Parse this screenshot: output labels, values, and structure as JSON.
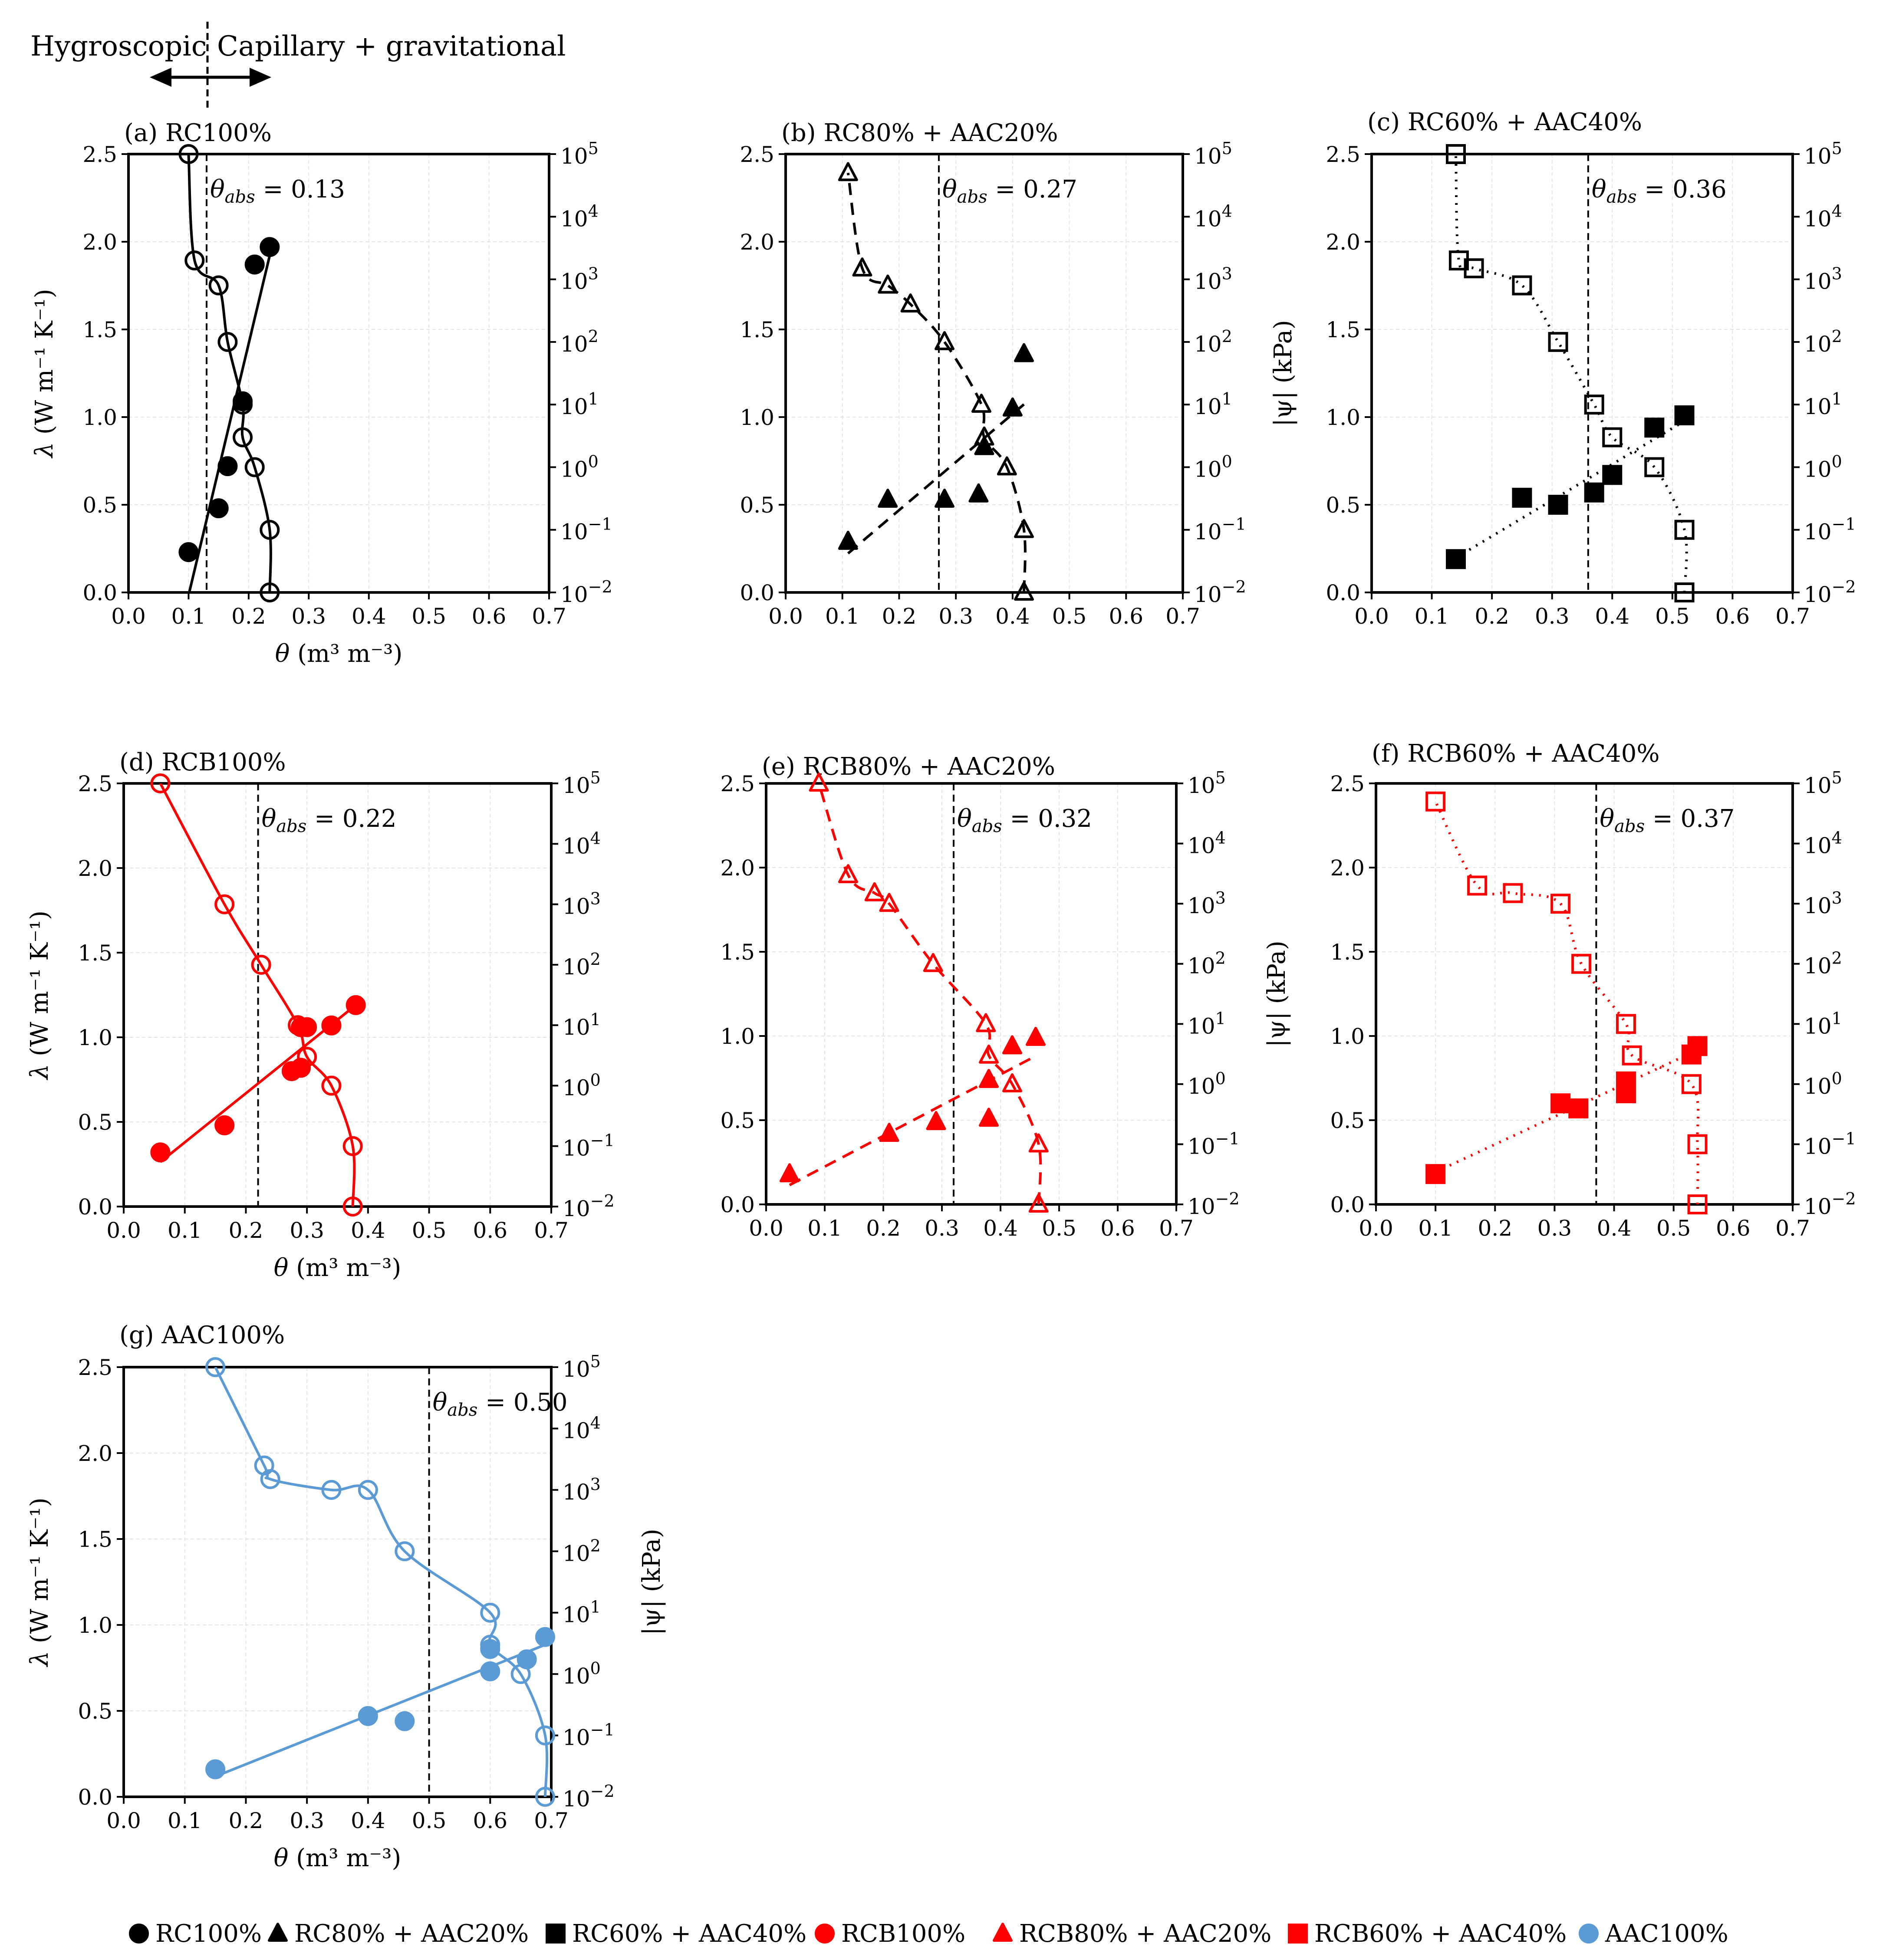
{
  "header": {
    "left_label": "Hygroscopic",
    "right_label": "Capillary + gravitational"
  },
  "axes": {
    "x_label_symbol": "θ",
    "x_label_unit": "(m³ m⁻³)",
    "y_left_label_symbol": "λ",
    "y_left_label_unit": "(W m⁻¹ K⁻¹)",
    "y_right_label": "|ψ| (kPa)",
    "x_ticks": [
      "0.0",
      "0.1",
      "0.2",
      "0.3",
      "0.4",
      "0.5",
      "0.6",
      "0.7"
    ],
    "y_left_ticks": [
      "0.0",
      "0.5",
      "1.0",
      "1.5",
      "2.0",
      "2.5"
    ],
    "y_right_ticks": [
      {
        "base": "10",
        "exp": "−2"
      },
      {
        "base": "10",
        "exp": "−1"
      },
      {
        "base": "10",
        "exp": "0"
      },
      {
        "base": "10",
        "exp": "1"
      },
      {
        "base": "10",
        "exp": "2"
      },
      {
        "base": "10",
        "exp": "3"
      },
      {
        "base": "10",
        "exp": "4"
      },
      {
        "base": "10",
        "exp": "5"
      }
    ],
    "theta_abs_prefix": "θ",
    "theta_abs_sub": "abs"
  },
  "legend": [
    {
      "label": "RC100%",
      "marker": "circle",
      "color": "#000000"
    },
    {
      "label": "RC80% + AAC20%",
      "marker": "triangle",
      "color": "#000000"
    },
    {
      "label": "RC60% + AAC40%",
      "marker": "square",
      "color": "#000000"
    },
    {
      "label": "RCB100%",
      "marker": "circle",
      "color": "#ff0000"
    },
    {
      "label": "RCB80% + AAC20%",
      "marker": "triangle",
      "color": "#ff0000"
    },
    {
      "label": "RCB60% + AAC40%",
      "marker": "square",
      "color": "#ff0000"
    },
    {
      "label": "AAC100%",
      "marker": "circle",
      "color": "#5b9bd5"
    }
  ],
  "chart_data": [
    {
      "type": "scatter",
      "title": "(a) RC100%",
      "color": "#000000",
      "marker": "circle",
      "line_style": "solid",
      "show_right_label": false,
      "show_xlabel": true,
      "xlim": [
        0,
        0.7
      ],
      "ylim": [
        0,
        2.5
      ],
      "y2lim_log10": [
        -2,
        5
      ],
      "theta_abs": 0.13,
      "theta_abs_text": "= 0.13",
      "lambda": [
        [
          0.1,
          0.23
        ],
        [
          0.15,
          0.48
        ],
        [
          0.165,
          0.72
        ],
        [
          0.19,
          1.09
        ],
        [
          0.21,
          1.87
        ],
        [
          0.235,
          1.97
        ]
      ],
      "psi": [
        [
          0.235,
          0.01
        ],
        [
          0.235,
          0.1
        ],
        [
          0.21,
          1
        ],
        [
          0.19,
          3
        ],
        [
          0.19,
          10
        ],
        [
          0.165,
          100
        ],
        [
          0.15,
          800
        ],
        [
          0.11,
          2000
        ],
        [
          0.1,
          100000
        ]
      ]
    },
    {
      "type": "scatter",
      "title": "(b) RC80% + AAC20%",
      "color": "#000000",
      "marker": "triangle",
      "line_style": "dashed",
      "show_right_label": true,
      "show_xlabel": false,
      "xlim": [
        0,
        0.7
      ],
      "ylim": [
        0,
        2.5
      ],
      "y2lim_log10": [
        -2,
        5
      ],
      "theta_abs": 0.27,
      "theta_abs_text": "= 0.27",
      "lambda": [
        [
          0.11,
          0.29
        ],
        [
          0.18,
          0.53
        ],
        [
          0.28,
          0.53
        ],
        [
          0.34,
          0.56
        ],
        [
          0.35,
          0.83
        ],
        [
          0.4,
          1.05
        ],
        [
          0.42,
          1.36
        ]
      ],
      "psi": [
        [
          0.42,
          0.01
        ],
        [
          0.42,
          0.1
        ],
        [
          0.39,
          1
        ],
        [
          0.345,
          10
        ],
        [
          0.35,
          3
        ],
        [
          0.28,
          100
        ],
        [
          0.22,
          400
        ],
        [
          0.18,
          800
        ],
        [
          0.135,
          1500
        ],
        [
          0.11,
          50000
        ]
      ]
    },
    {
      "type": "scatter",
      "title": "(c) RC60% + AAC40%",
      "color": "#000000",
      "marker": "square",
      "line_style": "dotted",
      "show_right_label": false,
      "show_xlabel": false,
      "xlim": [
        0,
        0.7
      ],
      "ylim": [
        0,
        2.5
      ],
      "y2lim_log10": [
        -2,
        5
      ],
      "theta_abs": 0.36,
      "theta_abs_text": "= 0.36",
      "lambda": [
        [
          0.14,
          0.19
        ],
        [
          0.25,
          0.54
        ],
        [
          0.31,
          0.5
        ],
        [
          0.37,
          0.57
        ],
        [
          0.4,
          0.67
        ],
        [
          0.47,
          0.94
        ],
        [
          0.52,
          1.01
        ]
      ],
      "psi": [
        [
          0.52,
          0.01
        ],
        [
          0.52,
          0.1
        ],
        [
          0.47,
          1
        ],
        [
          0.4,
          3
        ],
        [
          0.37,
          10
        ],
        [
          0.31,
          100
        ],
        [
          0.25,
          800
        ],
        [
          0.17,
          1500
        ],
        [
          0.145,
          2000
        ],
        [
          0.14,
          100000
        ]
      ]
    },
    {
      "type": "scatter",
      "title": "(d) RCB100%",
      "color": "#ff0000",
      "marker": "circle",
      "line_style": "solid",
      "show_right_label": false,
      "show_xlabel": true,
      "xlim": [
        0,
        0.7
      ],
      "ylim": [
        0,
        2.5
      ],
      "y2lim_log10": [
        -2,
        5
      ],
      "theta_abs": 0.22,
      "theta_abs_text": "= 0.22",
      "lambda": [
        [
          0.06,
          0.32
        ],
        [
          0.165,
          0.48
        ],
        [
          0.275,
          0.8
        ],
        [
          0.29,
          0.82
        ],
        [
          0.29,
          1.06
        ],
        [
          0.3,
          1.06
        ],
        [
          0.34,
          1.07
        ],
        [
          0.38,
          1.19
        ]
      ],
      "psi": [
        [
          0.375,
          0.01
        ],
        [
          0.375,
          0.1
        ],
        [
          0.34,
          1
        ],
        [
          0.3,
          3
        ],
        [
          0.285,
          10
        ],
        [
          0.225,
          100
        ],
        [
          0.165,
          1000
        ],
        [
          0.06,
          100000
        ]
      ]
    },
    {
      "type": "scatter",
      "title": "(e) RCB80% + AAC20%",
      "color": "#ff0000",
      "marker": "triangle",
      "line_style": "dashed",
      "show_right_label": true,
      "show_xlabel": false,
      "xlim": [
        0,
        0.7
      ],
      "ylim": [
        0,
        2.5
      ],
      "y2lim_log10": [
        -2,
        5
      ],
      "theta_abs": 0.32,
      "theta_abs_text": "= 0.32",
      "lambda": [
        [
          0.04,
          0.18
        ],
        [
          0.21,
          0.42
        ],
        [
          0.29,
          0.49
        ],
        [
          0.38,
          0.51
        ],
        [
          0.38,
          0.74
        ],
        [
          0.42,
          0.94
        ],
        [
          0.46,
          0.99
        ]
      ],
      "psi": [
        [
          0.465,
          0.01
        ],
        [
          0.465,
          0.1
        ],
        [
          0.42,
          1
        ],
        [
          0.38,
          3
        ],
        [
          0.375,
          10
        ],
        [
          0.285,
          100
        ],
        [
          0.21,
          1000
        ],
        [
          0.185,
          1500
        ],
        [
          0.14,
          3000
        ],
        [
          0.09,
          100000
        ]
      ]
    },
    {
      "type": "scatter",
      "title": "(f) RCB60% + AAC40%",
      "color": "#ff0000",
      "marker": "square",
      "line_style": "dotted",
      "show_right_label": false,
      "show_xlabel": false,
      "xlim": [
        0,
        0.7
      ],
      "ylim": [
        0,
        2.5
      ],
      "y2lim_log10": [
        -2,
        5
      ],
      "theta_abs": 0.37,
      "theta_abs_text": "= 0.37",
      "lambda": [
        [
          0.1,
          0.18
        ],
        [
          0.31,
          0.6
        ],
        [
          0.34,
          0.57
        ],
        [
          0.42,
          0.66
        ],
        [
          0.42,
          0.73
        ],
        [
          0.53,
          0.89
        ],
        [
          0.54,
          0.94
        ]
      ],
      "psi": [
        [
          0.54,
          0.01
        ],
        [
          0.54,
          0.1
        ],
        [
          0.53,
          1
        ],
        [
          0.43,
          3
        ],
        [
          0.42,
          10
        ],
        [
          0.345,
          100
        ],
        [
          0.31,
          1000
        ],
        [
          0.23,
          1500
        ],
        [
          0.17,
          2000
        ],
        [
          0.1,
          50000
        ]
      ]
    },
    {
      "type": "scatter",
      "title": "(g)  AAC100%",
      "color": "#5b9bd5",
      "marker": "circle",
      "line_style": "solid",
      "show_right_label": true,
      "show_xlabel": true,
      "xlim": [
        0,
        0.7
      ],
      "ylim": [
        0,
        2.5
      ],
      "y2lim_log10": [
        -2,
        5
      ],
      "theta_abs": 0.5,
      "theta_abs_text": "= 0.50",
      "lambda": [
        [
          0.15,
          0.16
        ],
        [
          0.4,
          0.47
        ],
        [
          0.46,
          0.44
        ],
        [
          0.6,
          0.73
        ],
        [
          0.6,
          0.86
        ],
        [
          0.66,
          0.8
        ],
        [
          0.69,
          0.93
        ]
      ],
      "psi": [
        [
          0.69,
          0.01
        ],
        [
          0.69,
          0.1
        ],
        [
          0.65,
          1
        ],
        [
          0.6,
          3
        ],
        [
          0.6,
          10
        ],
        [
          0.46,
          100
        ],
        [
          0.4,
          1000
        ],
        [
          0.34,
          1000
        ],
        [
          0.24,
          1500
        ],
        [
          0.23,
          2500
        ],
        [
          0.15,
          100000
        ]
      ]
    }
  ]
}
